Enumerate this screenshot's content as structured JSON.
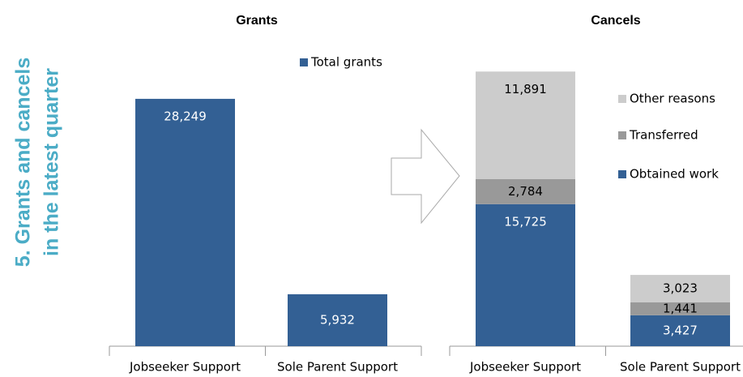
{
  "side_title": [
    "5. Grants and cancels",
    "in the latest quarter"
  ],
  "chart_data": [
    {
      "type": "bar",
      "title": "Grants",
      "categories": [
        "Jobseeker Support",
        "Sole Parent Support"
      ],
      "series": [
        {
          "name": "Total grants",
          "color": "#336094",
          "values": [
            28249,
            5932
          ],
          "value_labels": [
            "28,249",
            "5,932"
          ]
        }
      ],
      "ylim": [
        0,
        35000
      ]
    },
    {
      "type": "stacked_bar",
      "title": "Cancels",
      "categories": [
        "Jobseeker Support",
        "Sole Parent Support"
      ],
      "series": [
        {
          "name": "Obtained work",
          "color": "#336094",
          "values": [
            15725,
            3427
          ],
          "value_labels": [
            "15,725",
            "3,427"
          ]
        },
        {
          "name": "Transferred",
          "color": "#999999",
          "values": [
            2784,
            1441
          ],
          "value_labels": [
            "2,784",
            "1,441"
          ]
        },
        {
          "name": "Other reasons",
          "color": "#cccccc",
          "values": [
            11891,
            3023
          ],
          "value_labels": [
            "11,891",
            "3,023"
          ]
        }
      ],
      "ylim": [
        0,
        35000
      ]
    }
  ]
}
